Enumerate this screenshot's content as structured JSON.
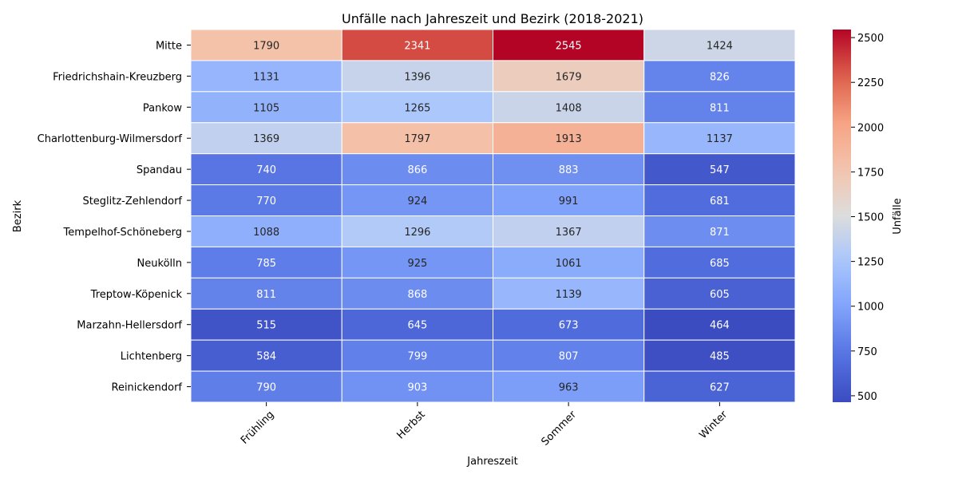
{
  "chart_data": {
    "type": "heatmap",
    "title": "Unfälle nach Jahreszeit und Bezirk (2018-2021)",
    "xlabel": "Jahreszeit",
    "ylabel": "Bezirk",
    "colorbar_label": "Unfälle",
    "colormap": "coolwarm",
    "colorbar_range": [
      464,
      2545
    ],
    "colorbar_ticks": [
      500,
      750,
      1000,
      1250,
      1500,
      1750,
      2000,
      2250,
      2500
    ],
    "columns": [
      "Frühling",
      "Herbst",
      "Sommer",
      "Winter"
    ],
    "rows": [
      "Mitte",
      "Friedrichshain-Kreuzberg",
      "Pankow",
      "Charlottenburg-Wilmersdorf",
      "Spandau",
      "Steglitz-Zehlendorf",
      "Tempelhof-Schöneberg",
      "Neukölln",
      "Treptow-Köpenick",
      "Marzahn-Hellersdorf",
      "Lichtenberg",
      "Reinickendorf"
    ],
    "values": [
      [
        1790,
        2341,
        2545,
        1424
      ],
      [
        1131,
        1396,
        1679,
        826
      ],
      [
        1105,
        1265,
        1408,
        811
      ],
      [
        1369,
        1797,
        1913,
        1137
      ],
      [
        740,
        866,
        883,
        547
      ],
      [
        770,
        924,
        991,
        681
      ],
      [
        1088,
        1296,
        1367,
        871
      ],
      [
        785,
        925,
        1061,
        685
      ],
      [
        811,
        868,
        1139,
        605
      ],
      [
        515,
        645,
        673,
        464
      ],
      [
        584,
        799,
        807,
        485
      ],
      [
        790,
        903,
        963,
        627
      ]
    ]
  }
}
